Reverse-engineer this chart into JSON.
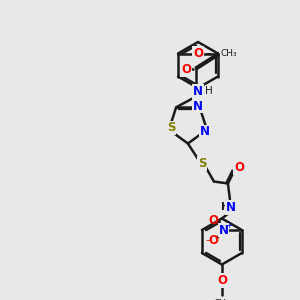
{
  "bg_color": "#e8e8e8",
  "bond_color": "#1a1a1a",
  "bond_lw": 1.8,
  "font_size_atom": 8.5,
  "font_size_small": 7.0,
  "colors": {
    "N": "#0000ff",
    "O": "#ff0000",
    "S": "#808000",
    "C": "#1a1a1a",
    "H": "#1a1a1a"
  }
}
